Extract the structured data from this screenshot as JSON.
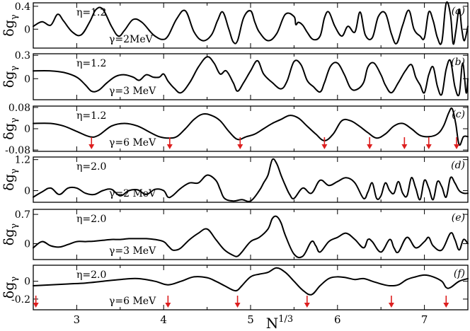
{
  "chart_data": {
    "type": "line",
    "xlabel": "N",
    "xlabel_sup": "1/3",
    "xlim": [
      2.5,
      7.5
    ],
    "xticks": [
      3,
      4,
      5,
      6,
      7
    ],
    "xtick_labels": [
      "3",
      "4",
      "5",
      "6",
      "7"
    ],
    "ylabel": "δg",
    "ylabel_sub": "γ",
    "panels": [
      {
        "label": "(a)",
        "eta": "η=1.2",
        "gamma": "γ=2MeV",
        "ylim": [
          -0.33,
          0.46
        ],
        "yticks": [
          0.4,
          0
        ],
        "ytick_labels": [
          "0.4",
          "0"
        ],
        "x": [
          2.5,
          2.6,
          2.7,
          2.78,
          2.85,
          2.95,
          3.05,
          3.15,
          3.22,
          3.3,
          3.4,
          3.48,
          3.55,
          3.65,
          3.75,
          3.85,
          3.9,
          3.98,
          4.05,
          4.15,
          4.25,
          4.35,
          4.45,
          4.55,
          4.62,
          4.68,
          4.75,
          4.8,
          4.85,
          4.92,
          5.0,
          5.05,
          5.1,
          5.2,
          5.3,
          5.4,
          5.5,
          5.52,
          5.55,
          5.6,
          5.65,
          5.72,
          5.8,
          5.85,
          5.9,
          5.97,
          6.05,
          6.12,
          6.2,
          6.26,
          6.32,
          6.4,
          6.47,
          6.55,
          6.62,
          6.68,
          6.75,
          6.82,
          6.88,
          6.95,
          7.0,
          7.05,
          7.1,
          7.15,
          7.2,
          7.25,
          7.3,
          7.33,
          7.36,
          7.4,
          7.43,
          7.46,
          7.5
        ],
        "y": [
          0.05,
          0.13,
          0.07,
          0.26,
          0.14,
          -0.05,
          -0.1,
          0.13,
          0.34,
          0.35,
          0.05,
          -0.12,
          -0.02,
          0.17,
          0.12,
          -0.05,
          -0.12,
          -0.18,
          -0.12,
          0.18,
          0.32,
          -0.05,
          -0.2,
          -0.1,
          0.15,
          0.3,
          0.0,
          -0.22,
          -0.2,
          0.2,
          0.32,
          0.12,
          -0.05,
          -0.2,
          -0.08,
          0.26,
          0.22,
          0.08,
          0.12,
          0.07,
          -0.05,
          -0.18,
          -0.12,
          0.2,
          0.3,
          0.05,
          -0.12,
          0.05,
          -0.05,
          0.3,
          -0.1,
          -0.15,
          0.22,
          0.28,
          -0.08,
          -0.25,
          0.07,
          0.33,
          0.0,
          -0.12,
          -0.15,
          0.3,
          0.15,
          -0.15,
          -0.22,
          0.45,
          0.25,
          -0.25,
          -0.05,
          0.35,
          0.0,
          -0.2,
          0.05
        ]
      },
      {
        "label": "(b)",
        "eta": "η=1.2",
        "gamma": "γ=3 MeV",
        "ylim": [
          -0.27,
          0.32
        ],
        "yticks": [
          0.3,
          0
        ],
        "ytick_labels": [
          "0.3",
          "0"
        ],
        "x": [
          2.5,
          2.7,
          2.85,
          3.0,
          3.1,
          3.17,
          3.25,
          3.35,
          3.45,
          3.55,
          3.65,
          3.72,
          3.8,
          3.88,
          3.95,
          4.0,
          4.05,
          4.12,
          4.2,
          4.3,
          4.4,
          4.5,
          4.58,
          4.65,
          4.72,
          4.8,
          4.85,
          4.92,
          5.0,
          5.08,
          5.15,
          5.25,
          5.35,
          5.42,
          5.5,
          5.58,
          5.65,
          5.72,
          5.8,
          5.85,
          5.92,
          6.0,
          6.08,
          6.15,
          6.22,
          6.3,
          6.35,
          6.42,
          6.5,
          6.55,
          6.62,
          6.7,
          6.78,
          6.85,
          6.9,
          6.95,
          7.0,
          7.05,
          7.1,
          7.15,
          7.2,
          7.25,
          7.3,
          7.35,
          7.4,
          7.44,
          7.48,
          7.5
        ],
        "y": [
          0.1,
          0.1,
          0.08,
          0.02,
          -0.08,
          -0.16,
          -0.15,
          -0.05,
          0.03,
          0.05,
          0.02,
          -0.02,
          0.05,
          0.02,
          0.02,
          0.06,
          -0.03,
          -0.12,
          -0.18,
          -0.05,
          0.15,
          0.28,
          0.2,
          0.06,
          0.1,
          -0.05,
          -0.16,
          -0.05,
          0.1,
          0.23,
          0.06,
          -0.05,
          -0.13,
          -0.03,
          0.22,
          0.18,
          -0.02,
          -0.1,
          -0.17,
          -0.05,
          0.16,
          0.2,
          0.05,
          -0.12,
          -0.14,
          -0.05,
          0.15,
          0.2,
          0.05,
          -0.08,
          -0.18,
          -0.05,
          0.1,
          0.18,
          0.02,
          -0.08,
          -0.18,
          0.05,
          0.15,
          -0.1,
          -0.2,
          0.12,
          0.23,
          -0.1,
          -0.2,
          0.2,
          -0.18,
          0.0
        ]
      },
      {
        "label": "(c)",
        "eta": "η=1.2",
        "gamma": "γ=6 MeV",
        "ylim": [
          -0.085,
          0.085
        ],
        "yticks": [
          0.08,
          0,
          -0.08
        ],
        "ytick_labels": [
          "0.08",
          "0",
          "-0.08"
        ],
        "x": [
          2.5,
          2.7,
          2.85,
          3.0,
          3.15,
          3.25,
          3.4,
          3.55,
          3.7,
          3.85,
          3.95,
          4.05,
          4.15,
          4.25,
          4.35,
          4.45,
          4.55,
          4.65,
          4.75,
          4.85,
          4.95,
          5.05,
          5.15,
          5.25,
          5.35,
          5.45,
          5.55,
          5.65,
          5.75,
          5.85,
          5.95,
          6.05,
          6.15,
          6.25,
          6.35,
          6.45,
          6.55,
          6.65,
          6.75,
          6.85,
          6.95,
          7.05,
          7.15,
          7.22,
          7.28,
          7.32,
          7.36,
          7.4,
          7.45,
          7.5
        ],
        "y": [
          0.02,
          0.02,
          0.01,
          -0.01,
          -0.03,
          -0.025,
          0.01,
          0.02,
          0.01,
          -0.015,
          -0.03,
          -0.035,
          -0.03,
          0.0,
          0.035,
          0.055,
          0.05,
          0.03,
          -0.01,
          -0.04,
          -0.03,
          -0.02,
          0.0,
          0.02,
          0.035,
          0.05,
          0.04,
          0.01,
          -0.02,
          -0.045,
          -0.02,
          0.03,
          0.03,
          0.01,
          -0.015,
          -0.035,
          -0.02,
          0.01,
          0.02,
          0.0,
          -0.025,
          -0.03,
          -0.02,
          0.01,
          0.06,
          0.075,
          0.02,
          -0.06,
          -0.03,
          -0.03
        ]
      },
      {
        "label": "(d)",
        "eta": "η=2.0",
        "gamma": "γ=2 MeV",
        "ylim": [
          -0.45,
          1.3
        ],
        "yticks": [
          1.2,
          0
        ],
        "ytick_labels": [
          "1.2",
          "0"
        ],
        "x": [
          2.5,
          2.6,
          2.7,
          2.8,
          2.9,
          3.0,
          3.1,
          3.2,
          3.3,
          3.4,
          3.5,
          3.6,
          3.7,
          3.8,
          3.9,
          4.0,
          4.05,
          4.1,
          4.2,
          4.3,
          4.4,
          4.5,
          4.6,
          4.65,
          4.7,
          4.8,
          4.9,
          5.0,
          5.1,
          5.15,
          5.2,
          5.25,
          5.3,
          5.35,
          5.4,
          5.45,
          5.5,
          5.6,
          5.7,
          5.8,
          5.9,
          6.0,
          6.1,
          6.2,
          6.3,
          6.35,
          6.4,
          6.45,
          6.5,
          6.55,
          6.6,
          6.65,
          6.7,
          6.75,
          6.8,
          6.85,
          6.9,
          6.95,
          7.0,
          7.05,
          7.1,
          7.15,
          7.2,
          7.25,
          7.3,
          7.35,
          7.4,
          7.45,
          7.5
        ],
        "y": [
          -0.25,
          -0.05,
          0.1,
          -0.15,
          0.1,
          0.1,
          -0.1,
          -0.15,
          0.0,
          0.05,
          -0.2,
          0.0,
          0.03,
          -0.15,
          0.05,
          0.0,
          -0.25,
          -0.2,
          0.1,
          0.3,
          0.3,
          0.6,
          0.4,
          0.05,
          -0.3,
          -0.4,
          -0.35,
          -0.4,
          0.0,
          0.3,
          0.6,
          1.2,
          1.05,
          0.6,
          0.2,
          -0.15,
          -0.3,
          0.1,
          -0.1,
          0.4,
          0.2,
          0.35,
          0.5,
          0.3,
          -0.3,
          -0.05,
          0.3,
          -0.3,
          -0.2,
          0.3,
          0.0,
          -0.1,
          0.35,
          -0.1,
          -0.2,
          0.5,
          0.1,
          -0.35,
          0.4,
          0.1,
          -0.35,
          0.35,
          0.15,
          -0.25,
          0.5,
          0.3,
          0.0,
          -0.1,
          -0.1
        ]
      },
      {
        "label": "(e)",
        "eta": "η=2.0",
        "gamma": "γ=3 MeV",
        "ylim": [
          -0.38,
          0.82
        ],
        "yticks": [
          0.7,
          0
        ],
        "ytick_labels": [
          "0.7",
          "0"
        ],
        "x": [
          2.5,
          2.6,
          2.7,
          2.8,
          2.9,
          3.0,
          3.1,
          3.2,
          3.3,
          3.4,
          3.5,
          3.6,
          3.7,
          3.8,
          3.9,
          4.0,
          4.05,
          4.1,
          4.15,
          4.2,
          4.3,
          4.4,
          4.5,
          4.6,
          4.7,
          4.8,
          4.85,
          4.9,
          5.0,
          5.1,
          5.2,
          5.25,
          5.3,
          5.35,
          5.4,
          5.5,
          5.6,
          5.7,
          5.75,
          5.8,
          5.9,
          6.0,
          6.1,
          6.2,
          6.3,
          6.35,
          6.4,
          6.5,
          6.6,
          6.65,
          6.7,
          6.8,
          6.9,
          7.0,
          7.05,
          7.1,
          7.2,
          7.3,
          7.35,
          7.4,
          7.45,
          7.5
        ],
        "y": [
          -0.1,
          0.05,
          -0.05,
          -0.08,
          -0.02,
          0.05,
          0.05,
          0.06,
          0.08,
          0.1,
          0.1,
          0.12,
          0.12,
          0.12,
          0.1,
          0.05,
          -0.05,
          -0.15,
          -0.15,
          -0.1,
          0.1,
          0.25,
          0.35,
          0.1,
          -0.15,
          -0.28,
          -0.3,
          -0.2,
          0.05,
          0.15,
          0.35,
          0.6,
          0.65,
          0.5,
          0.2,
          -0.25,
          -0.3,
          0.05,
          -0.05,
          -0.2,
          0.05,
          0.15,
          0.25,
          0.1,
          -0.1,
          0.1,
          0.05,
          -0.2,
          0.1,
          -0.1,
          -0.2,
          0.15,
          -0.1,
          0.05,
          0.15,
          -0.05,
          -0.15,
          0.25,
          0.1,
          -0.15,
          0.1,
          0.0
        ]
      },
      {
        "label": "(f)",
        "eta": "η=2.0",
        "gamma": "γ=6 MeV",
        "ylim": [
          -0.32,
          0.18
        ],
        "yticks": [
          0,
          -0.2
        ],
        "ytick_labels": [
          "0",
          "-0.2"
        ],
        "x": [
          2.5,
          2.7,
          2.9,
          3.1,
          3.3,
          3.5,
          3.7,
          3.9,
          4.05,
          4.2,
          4.35,
          4.5,
          4.6,
          4.7,
          4.8,
          4.85,
          4.9,
          5.0,
          5.1,
          5.2,
          5.3,
          5.4,
          5.5,
          5.6,
          5.7,
          5.8,
          5.9,
          6.0,
          6.1,
          6.2,
          6.3,
          6.4,
          6.5,
          6.6,
          6.7,
          6.8,
          6.9,
          7.0,
          7.1,
          7.2,
          7.25,
          7.3,
          7.4,
          7.5
        ],
        "y": [
          -0.05,
          -0.04,
          -0.03,
          -0.02,
          0.0,
          0.02,
          0.03,
          0.0,
          -0.04,
          0.0,
          0.05,
          0.04,
          0.0,
          -0.05,
          -0.1,
          -0.1,
          -0.05,
          0.05,
          0.08,
          0.1,
          0.15,
          0.1,
          0.0,
          -0.1,
          -0.15,
          -0.05,
          0.03,
          0.05,
          0.04,
          0.02,
          0.03,
          0.0,
          -0.03,
          -0.05,
          -0.04,
          0.02,
          0.05,
          0.07,
          0.05,
          0.0,
          -0.07,
          -0.07,
          0.0,
          0.03
        ]
      }
    ],
    "arrows": [
      {
        "panel": 2,
        "x": [
          3.17,
          4.07,
          4.88,
          5.85,
          6.37,
          6.77,
          7.05,
          7.37
        ]
      },
      {
        "panel": 5,
        "x": [
          2.53,
          4.05,
          4.85,
          5.65,
          6.62,
          7.25
        ]
      }
    ]
  }
}
